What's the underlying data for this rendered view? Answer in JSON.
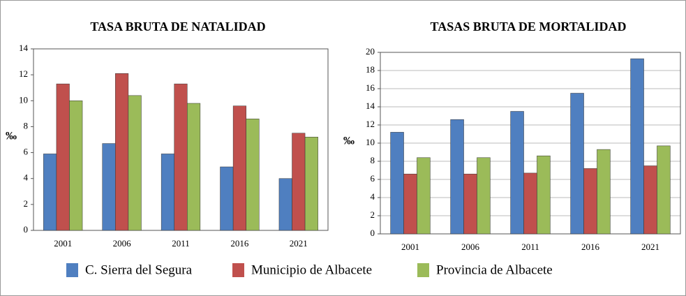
{
  "chart_data": [
    {
      "type": "bar",
      "title": "TASA BRUTA DE NATALIDAD",
      "ylabel": "‰",
      "categories": [
        "2001",
        "2006",
        "2011",
        "2016",
        "2021"
      ],
      "series": [
        {
          "name": "C. Sierra del Segura",
          "color": "#4f7fc0",
          "values": [
            5.9,
            6.7,
            5.9,
            4.9,
            4.0
          ]
        },
        {
          "name": "Municipio de Albacete",
          "color": "#c0504d",
          "values": [
            11.3,
            12.1,
            11.3,
            9.6,
            7.5
          ]
        },
        {
          "name": "Provincia de Albacete",
          "color": "#9bbb59",
          "values": [
            10.0,
            10.4,
            9.8,
            8.6,
            7.2
          ]
        }
      ],
      "ylim": [
        0,
        14
      ],
      "yticks": [
        0,
        2,
        4,
        6,
        8,
        10,
        12,
        14
      ],
      "grid": false
    },
    {
      "type": "bar",
      "title": "TASAS BRUTA DE MORTALIDAD",
      "ylabel": "‰",
      "categories": [
        "2001",
        "2006",
        "2011",
        "2016",
        "2021"
      ],
      "series": [
        {
          "color": "#4f7fc0",
          "values": [
            11.2,
            12.6,
            13.5,
            15.5,
            19.3
          ]
        },
        {
          "color": "#c0504d",
          "values": [
            6.6,
            6.6,
            6.7,
            7.2,
            7.5
          ]
        },
        {
          "color": "#9bbb59",
          "values": [
            8.4,
            8.4,
            8.6,
            9.3,
            9.7
          ]
        }
      ],
      "ylim": [
        0,
        20
      ],
      "yticks": [
        0,
        2,
        4,
        6,
        8,
        10,
        12,
        14,
        16,
        18,
        20
      ],
      "grid": true
    }
  ]
}
